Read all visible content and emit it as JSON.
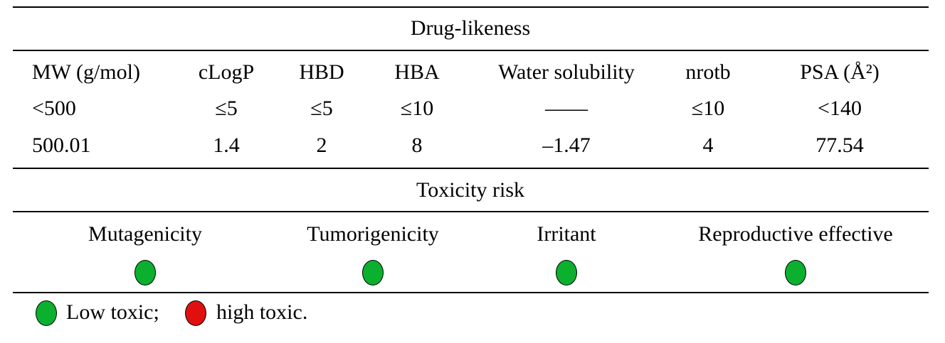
{
  "drug_likeness": {
    "title": "Drug-likeness",
    "header": [
      "MW (g/mol)",
      "cLogP",
      "HBD",
      "HBA",
      "Water solubility",
      "nrotb",
      "PSA (Å²)"
    ],
    "rows": [
      [
        "<500",
        "≤5",
        "≤5",
        "≤10",
        "——",
        "≤10",
        "<140"
      ],
      [
        "500.01",
        "1.4",
        "2",
        "8",
        "–1.47",
        "4",
        "77.54"
      ]
    ]
  },
  "toxicity_risk": {
    "title": "Toxicity risk",
    "header": [
      "Mutagenicity",
      "Tumorigenicity",
      "Irritant",
      "Reproductive effective"
    ]
  },
  "legend": [
    "Low toxic;",
    "high toxic."
  ]
}
